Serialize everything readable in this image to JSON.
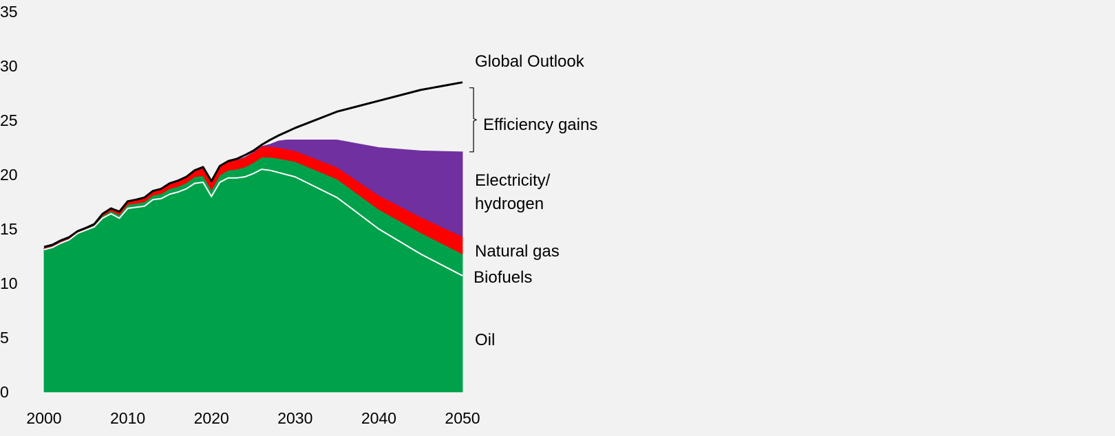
{
  "colors": {
    "background": "#f2f2f2",
    "oil": "#00a14b",
    "biofuels": "#00a14b",
    "natural_gas": "#ff0000",
    "electricity_hydrogen": "#7030a0",
    "outlook_line": "#000000",
    "biofuel_edge": "#ffffff"
  },
  "chart_data": {
    "type": "area",
    "stacked": true,
    "xlim": [
      2000,
      2050
    ],
    "ylim": [
      0,
      35
    ],
    "grid": false,
    "legend": "none (inline labels at right)",
    "x_ticks": [
      "2000",
      "2010",
      "2020",
      "2030",
      "2040",
      "2050"
    ],
    "y_ticks": [
      "0",
      "5",
      "10",
      "15",
      "20",
      "25",
      "30",
      "35"
    ],
    "x": [
      2000,
      2001,
      2002,
      2003,
      2004,
      2005,
      2006,
      2007,
      2008,
      2009,
      2010,
      2011,
      2012,
      2013,
      2014,
      2015,
      2016,
      2017,
      2018,
      2019,
      2020,
      2021,
      2022,
      2023,
      2024,
      2025,
      2026,
      2027,
      2028,
      2029,
      2030,
      2035,
      2040,
      2045,
      2050
    ],
    "series": [
      {
        "key": "oil",
        "name": "Oil",
        "values": [
          13.1,
          13.3,
          13.7,
          14.0,
          14.6,
          14.9,
          15.2,
          16.0,
          16.4,
          16.0,
          16.9,
          17.0,
          17.1,
          17.7,
          17.8,
          18.2,
          18.4,
          18.7,
          19.2,
          19.3,
          18.0,
          19.3,
          19.7,
          19.7,
          19.8,
          20.1,
          20.5,
          20.4,
          20.2,
          20.0,
          19.8,
          17.9,
          15.0,
          12.7,
          10.7
        ]
      },
      {
        "key": "biofuels",
        "name": "Biofuels",
        "values": [
          0.1,
          0.1,
          0.1,
          0.1,
          0.1,
          0.1,
          0.15,
          0.2,
          0.25,
          0.3,
          0.35,
          0.35,
          0.4,
          0.4,
          0.45,
          0.5,
          0.5,
          0.55,
          0.6,
          0.6,
          0.6,
          0.65,
          0.7,
          0.8,
          0.9,
          1.0,
          1.1,
          1.2,
          1.3,
          1.35,
          1.4,
          1.7,
          1.8,
          1.95,
          2.0
        ]
      },
      {
        "key": "natural_gas",
        "name": "Natural gas",
        "values": [
          0.05,
          0.05,
          0.05,
          0.05,
          0.1,
          0.1,
          0.1,
          0.2,
          0.25,
          0.25,
          0.3,
          0.35,
          0.4,
          0.4,
          0.45,
          0.5,
          0.55,
          0.55,
          0.6,
          0.7,
          0.7,
          0.8,
          0.85,
          0.85,
          0.9,
          0.95,
          1.0,
          1.0,
          1.0,
          1.0,
          1.0,
          1.1,
          1.3,
          1.45,
          1.6
        ]
      },
      {
        "key": "electricity_hydrogen",
        "name": "Electricity/ hydrogen",
        "values": [
          0,
          0,
          0,
          0,
          0,
          0,
          0,
          0,
          0,
          0,
          0,
          0,
          0,
          0,
          0,
          0,
          0,
          0,
          0,
          0,
          0,
          0,
          0,
          0,
          0,
          0,
          0,
          0.2,
          0.6,
          0.85,
          1.0,
          2.5,
          4.4,
          6.1,
          7.8
        ]
      }
    ],
    "outlook_line": {
      "name": "Global Outlook",
      "x": [
        2000,
        2001,
        2002,
        2003,
        2004,
        2005,
        2006,
        2007,
        2008,
        2009,
        2010,
        2011,
        2012,
        2013,
        2014,
        2015,
        2016,
        2017,
        2018,
        2019,
        2020,
        2021,
        2022,
        2023,
        2024,
        2025,
        2026,
        2027,
        2028,
        2029,
        2030,
        2035,
        2040,
        2045,
        2050
      ],
      "values": [
        13.35,
        13.55,
        13.95,
        14.25,
        14.8,
        15.1,
        15.45,
        16.4,
        16.9,
        16.6,
        17.55,
        17.7,
        17.9,
        18.5,
        18.7,
        19.2,
        19.45,
        19.8,
        20.4,
        20.7,
        19.4,
        20.8,
        21.25,
        21.45,
        21.8,
        22.2,
        22.75,
        23.2,
        23.6,
        23.95,
        24.3,
        25.8,
        26.8,
        27.8,
        28.5
      ]
    },
    "labels": {
      "global_outlook": "Global Outlook",
      "efficiency_gains": "Efficiency gains",
      "electricity_line1": "Electricity/",
      "electricity_line2": "hydrogen",
      "natural_gas": "Natural gas",
      "biofuels": "Biofuels",
      "oil": "Oil"
    }
  }
}
